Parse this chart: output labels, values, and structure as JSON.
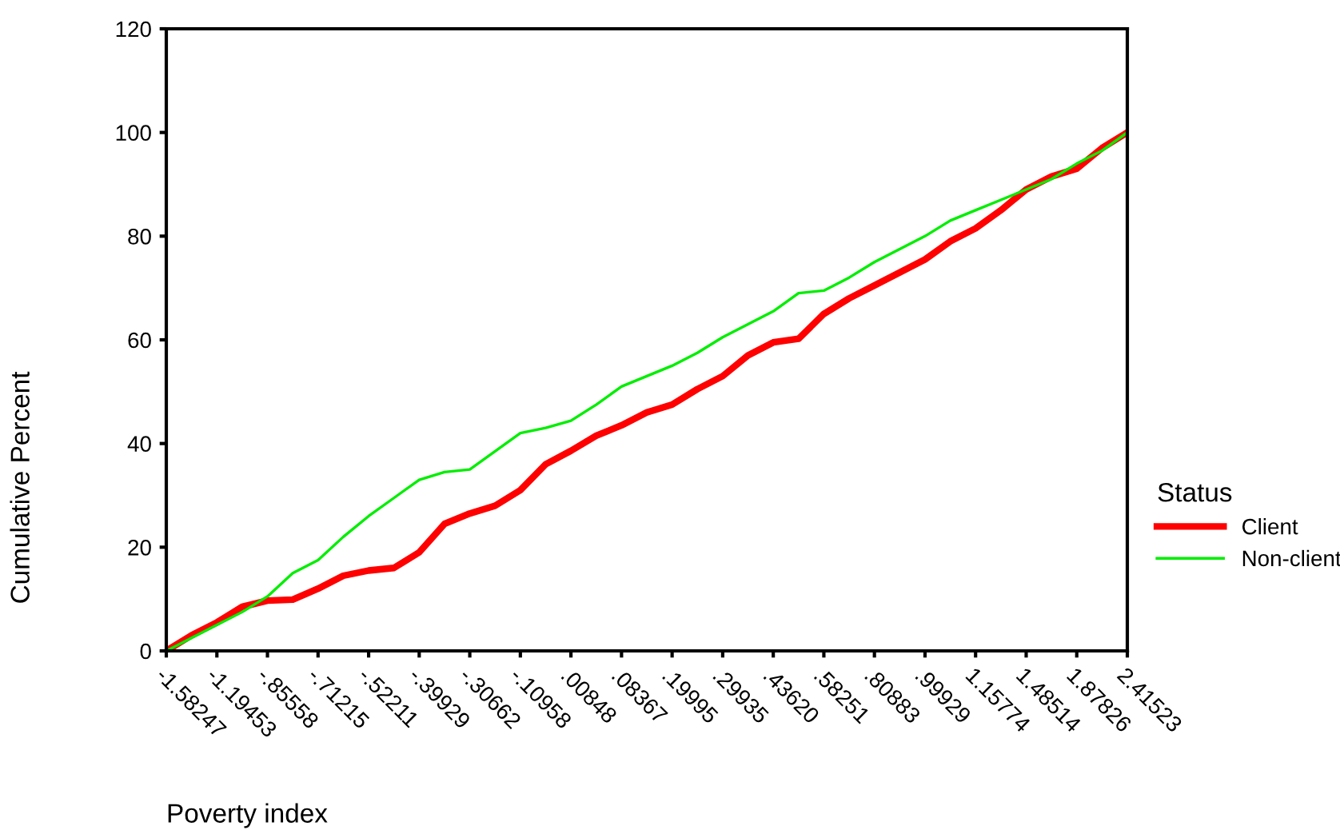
{
  "chart_data": {
    "type": "line",
    "xlabel": "Poverty index",
    "ylabel": "Cumulative Percent",
    "legend_title": "Status",
    "legend": "right",
    "grid": false,
    "marker": "none",
    "line_style": "solid",
    "ylim": [
      0,
      120
    ],
    "yticks": [
      0,
      20,
      40,
      60,
      80,
      100,
      120
    ],
    "categories": [
      "-1.58247",
      null,
      "-1.19453",
      null,
      "-.85558",
      null,
      "-.71215",
      null,
      "-.52211",
      null,
      "-.39929",
      null,
      "-.30662",
      null,
      "-.10958",
      null,
      ".00848",
      null,
      ".08367",
      null,
      ".19995",
      null,
      ".29935",
      null,
      ".43620",
      null,
      ".58251",
      null,
      ".80883",
      null,
      ".99929",
      null,
      "1.15774",
      null,
      "1.48514",
      null,
      "1.87826",
      null,
      "2.41523"
    ],
    "series": [
      {
        "name": "Client",
        "color": "#ff0000",
        "values": [
          0,
          3,
          5.5,
          8.5,
          9.7,
          9.9,
          12,
          14.5,
          15.5,
          16,
          19,
          24.5,
          26.5,
          28,
          31,
          36,
          38.6,
          41.5,
          43.5,
          46,
          47.5,
          50.5,
          53,
          57,
          59.5,
          60.2,
          65,
          68,
          70.5,
          73,
          75.5,
          79,
          81.5,
          85,
          89,
          91.5,
          93,
          97,
          100
        ]
      },
      {
        "name": "Non-client",
        "color": "#00ee00",
        "values": [
          0,
          2.5,
          5,
          7.5,
          10.5,
          15,
          17.5,
          22,
          26,
          29.5,
          33,
          34.5,
          35,
          38.5,
          42,
          43,
          44.4,
          47.5,
          51,
          53,
          55,
          57.5,
          60.5,
          63,
          65.5,
          69,
          69.5,
          72,
          75,
          77.5,
          80,
          83,
          85,
          87,
          89,
          91,
          94,
          96.5,
          100
        ]
      }
    ]
  }
}
